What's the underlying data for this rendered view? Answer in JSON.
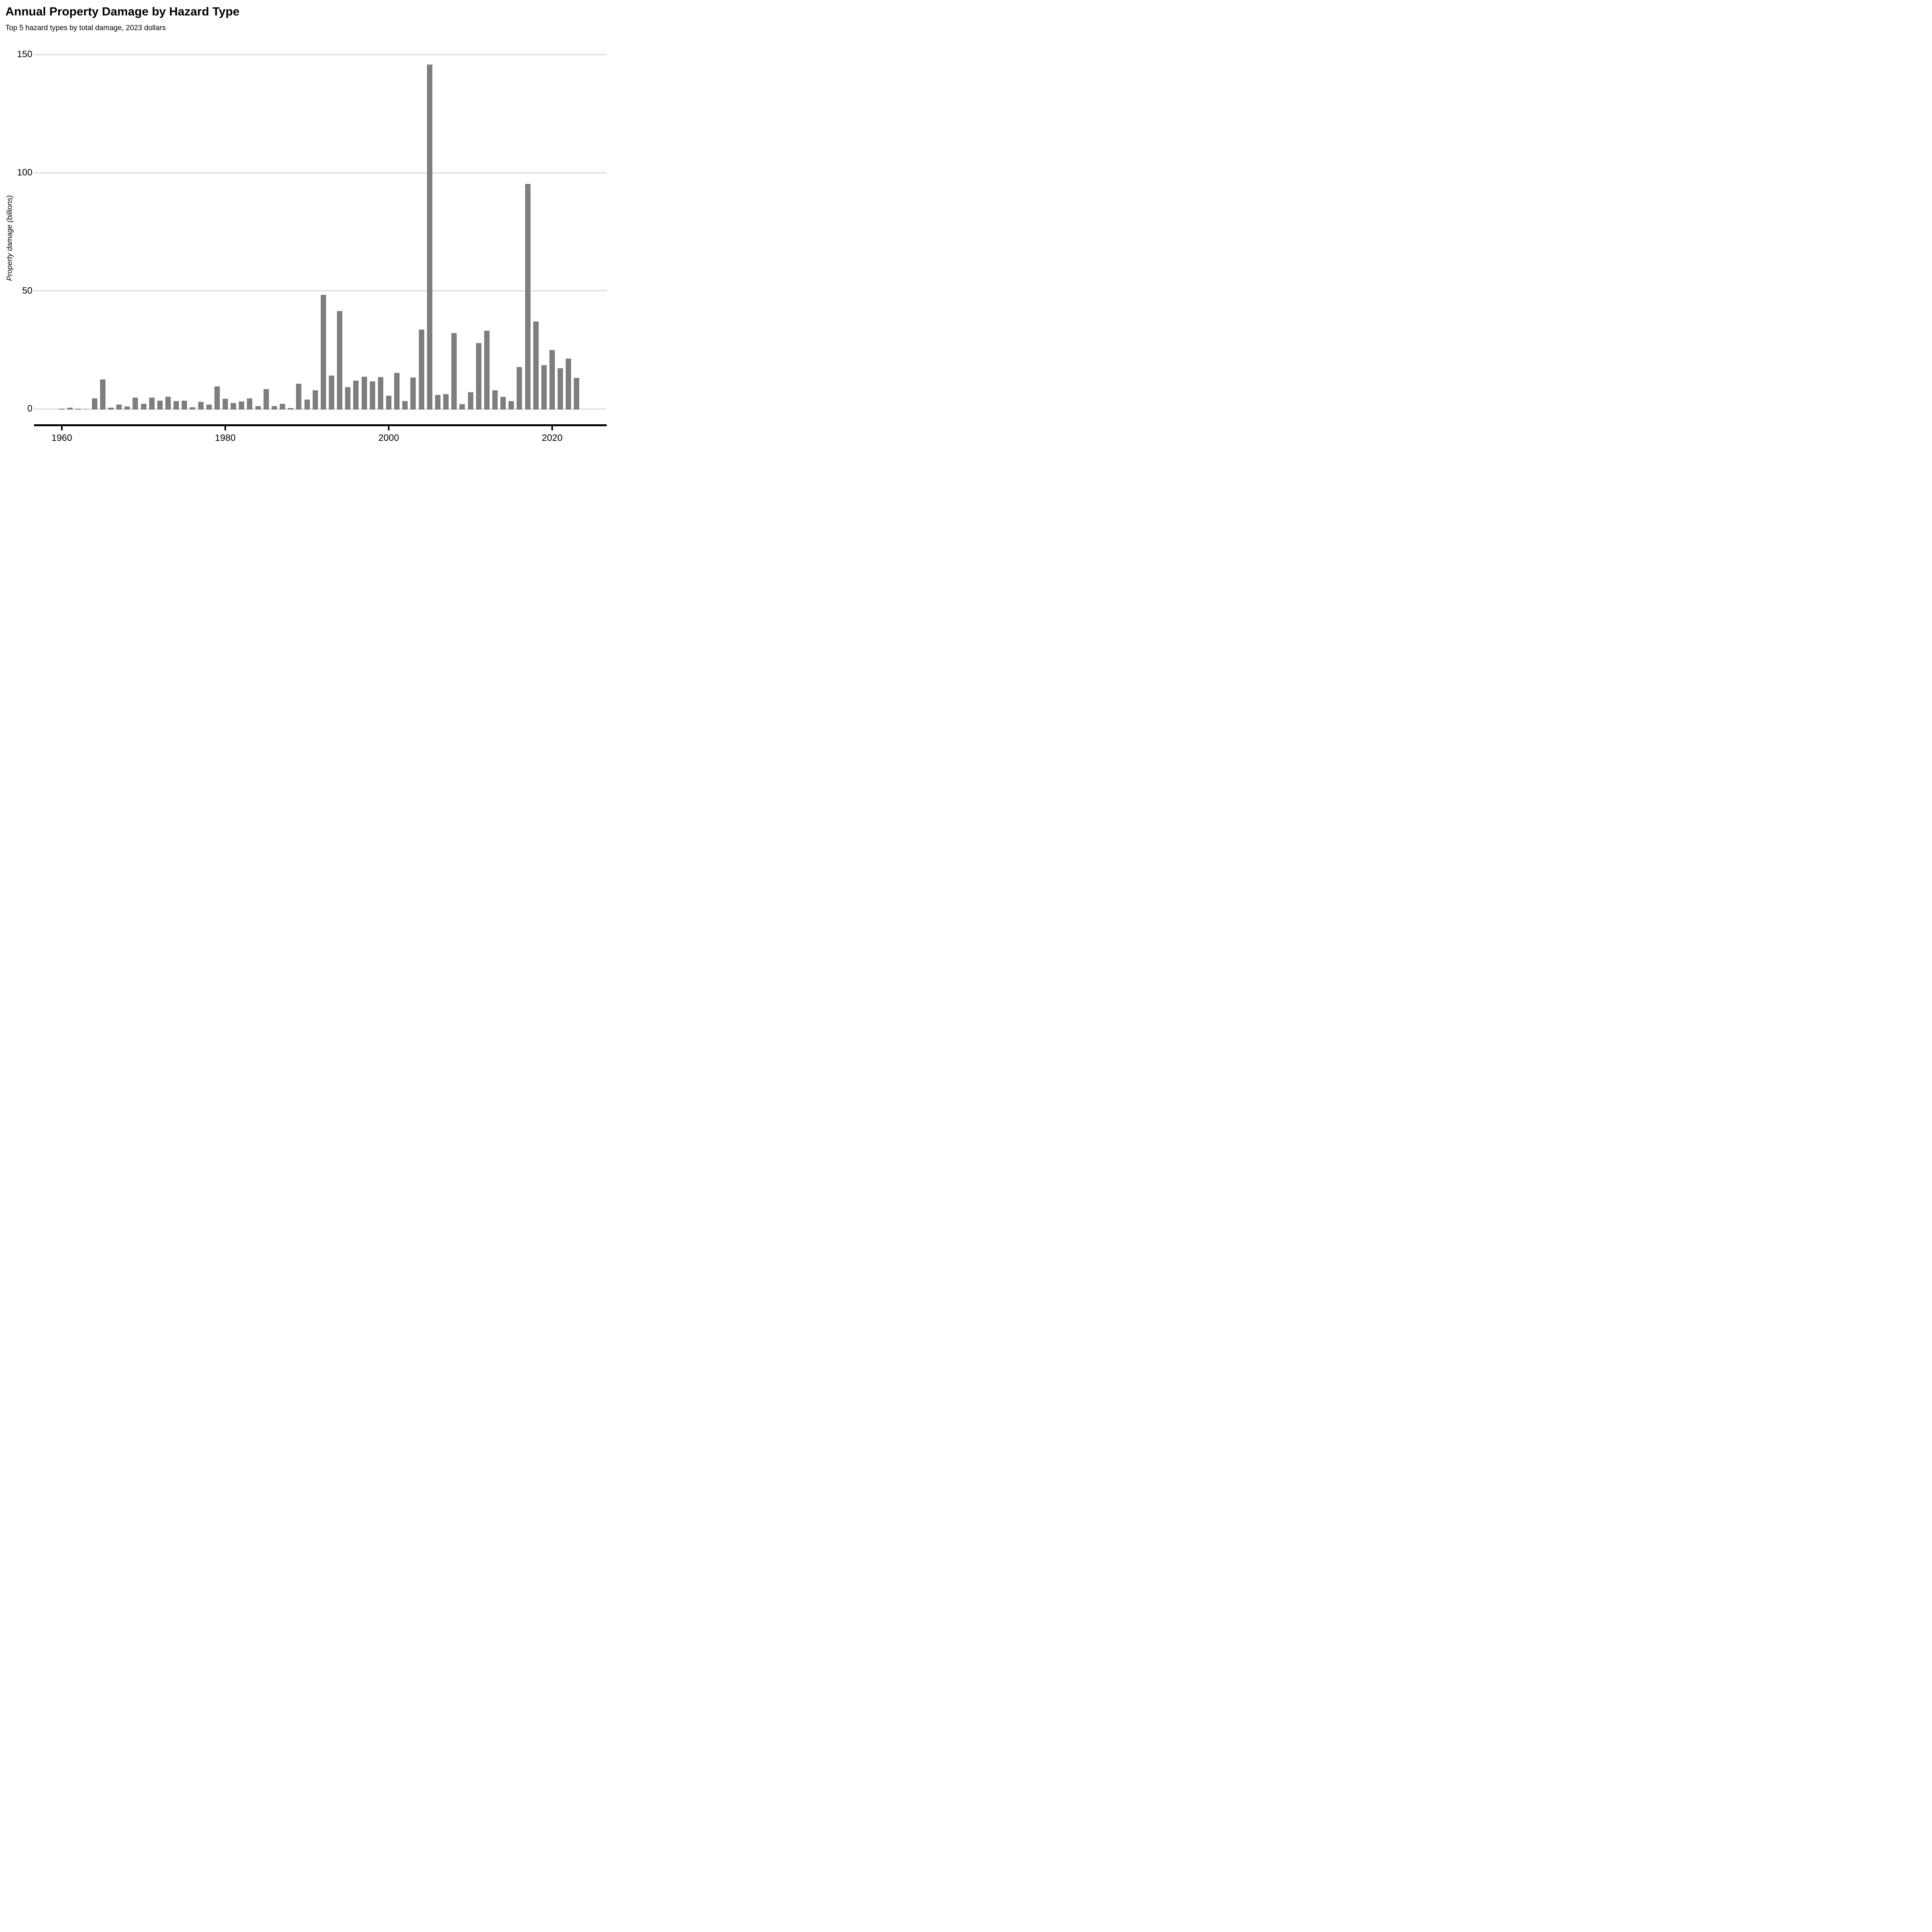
{
  "header": {
    "title": "Annual Property Damage by Hazard Type",
    "subtitle": "Top 5 hazard types by total damage, 2023 dollars"
  },
  "colors": {
    "bar": "#7e7e7e",
    "gridline": "#dcdcdc",
    "axis": "#000000",
    "background": "#ffffff",
    "text": "#000000"
  },
  "chart_data": {
    "type": "bar",
    "title": "Annual Property Damage by Hazard Type",
    "subtitle": "Top 5 hazard types by total damage, 2023 dollars",
    "xlabel": "",
    "ylabel": "Property damage (billions)",
    "ylim": [
      0,
      150
    ],
    "y_ticks": [
      0,
      50,
      100,
      150
    ],
    "x_ticks": [
      1960,
      1980,
      2000,
      2020
    ],
    "grid": "horizontal-only",
    "legend": "none",
    "categories": [
      1960,
      1961,
      1962,
      1963,
      1964,
      1965,
      1966,
      1967,
      1968,
      1969,
      1970,
      1971,
      1972,
      1973,
      1974,
      1975,
      1976,
      1977,
      1978,
      1979,
      1980,
      1981,
      1982,
      1983,
      1984,
      1985,
      1986,
      1987,
      1988,
      1989,
      1990,
      1991,
      1992,
      1993,
      1994,
      1995,
      1996,
      1997,
      1998,
      1999,
      2000,
      2001,
      2002,
      2003,
      2004,
      2005,
      2006,
      2007,
      2008,
      2009,
      2010,
      2011,
      2012,
      2013,
      2014,
      2015,
      2016,
      2017,
      2018,
      2019,
      2020,
      2021,
      2022,
      2023
    ],
    "values": [
      0.4,
      0.9,
      0.4,
      0.3,
      4.8,
      12.8,
      0.9,
      2.2,
      1.3,
      5.2,
      2.6,
      5.2,
      3.8,
      5.5,
      3.6,
      3.8,
      1.0,
      3.3,
      2.2,
      9.9,
      4.6,
      2.8,
      3.5,
      4.8,
      1.6,
      8.7,
      1.5,
      2.5,
      0.8,
      11.1,
      4.4,
      8.3,
      48.6,
      14.4,
      41.7,
      9.5,
      12.3,
      13.9,
      12.0,
      13.8,
      6.0,
      15.6,
      3.6,
      13.7,
      33.9,
      146.2,
      6.2,
      6.6,
      32.4,
      2.4,
      7.4,
      28.2,
      33.5,
      8.2,
      5.4,
      3.6,
      18.0,
      95.6,
      37.3,
      18.8,
      25.2,
      17.6,
      21.7,
      13.4
    ]
  }
}
